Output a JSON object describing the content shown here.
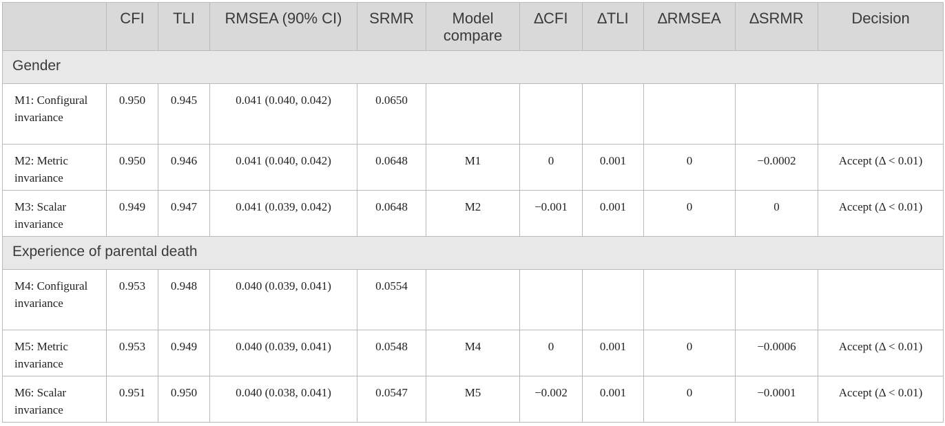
{
  "headers": [
    "",
    "CFI",
    "TLI",
    "RMSEA (90% CI)",
    "SRMR",
    "Model compare",
    "∆CFI",
    "∆TLI",
    "∆RMSEA",
    "∆SRMR",
    "Decision"
  ],
  "sections": [
    {
      "title": "Gender",
      "rows": [
        {
          "model": "M1: Configural invariance",
          "cfi": "0.950",
          "tli": "0.945",
          "rmsea": "0.041 (0.040, 0.042)",
          "srmr": "0.0650",
          "compare": "",
          "dcfi": "",
          "dtli": "",
          "drmsea": "",
          "dsrmr": "",
          "decision": ""
        },
        {
          "model": "M2: Metric invariance",
          "cfi": "0.950",
          "tli": "0.946",
          "rmsea": "0.041 (0.040, 0.042)",
          "srmr": "0.0648",
          "compare": "M1",
          "dcfi": "0",
          "dtli": "0.001",
          "drmsea": "0",
          "dsrmr": "−0.0002",
          "decision": "Accept (Δ < 0.01)"
        },
        {
          "model": "M3: Scalar invariance",
          "cfi": "0.949",
          "tli": "0.947",
          "rmsea": "0.041 (0.039, 0.042)",
          "srmr": "0.0648",
          "compare": "M2",
          "dcfi": "−0.001",
          "dtli": "0.001",
          "drmsea": "0",
          "dsrmr": "0",
          "decision": "Accept (Δ < 0.01)"
        }
      ]
    },
    {
      "title": "Experience of parental death",
      "rows": [
        {
          "model": "M4: Configural invariance",
          "cfi": "0.953",
          "tli": "0.948",
          "rmsea": "0.040 (0.039, 0.041)",
          "srmr": "0.0554",
          "compare": "",
          "dcfi": "",
          "dtli": "",
          "drmsea": "",
          "dsrmr": "",
          "decision": ""
        },
        {
          "model": "M5: Metric invariance",
          "cfi": "0.953",
          "tli": "0.949",
          "rmsea": "0.040 (0.039, 0.041)",
          "srmr": "0.0548",
          "compare": "M4",
          "dcfi": "0",
          "dtli": "0.001",
          "drmsea": "0",
          "dsrmr": "−0.0006",
          "decision": "Accept (Δ < 0.01)"
        },
        {
          "model": "M6: Scalar invariance",
          "cfi": "0.951",
          "tli": "0.950",
          "rmsea": "0.040 (0.038, 0.041)",
          "srmr": "0.0547",
          "compare": "M5",
          "dcfi": "−0.002",
          "dtli": "0.001",
          "drmsea": "0",
          "dsrmr": "−0.0001",
          "decision": "Accept (Δ < 0.01)"
        }
      ]
    }
  ]
}
